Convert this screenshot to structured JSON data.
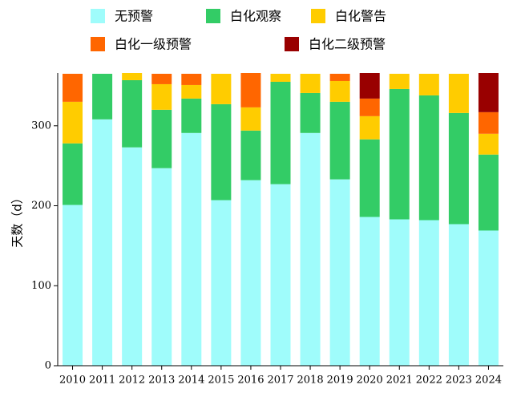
{
  "chart_data": {
    "type": "stacked_bar",
    "y_label": "天数（d）",
    "categories": [
      "2010",
      "2011",
      "2012",
      "2013",
      "2014",
      "2015",
      "2016",
      "2017",
      "2018",
      "2019",
      "2020",
      "2021",
      "2022",
      "2023",
      "2024"
    ],
    "series": [
      {
        "name": "无预警",
        "color": "#9ffcfb",
        "values": [
          201,
          308,
          273,
          247,
          291,
          207,
          232,
          227,
          291,
          233,
          186,
          183,
          182,
          177,
          169
        ]
      },
      {
        "name": "白化观察",
        "color": "#33cc66",
        "values": [
          77,
          57,
          84,
          73,
          43,
          120,
          62,
          128,
          50,
          97,
          97,
          163,
          156,
          139,
          95
        ]
      },
      {
        "name": "白化警告",
        "color": "#ffcc00",
        "values": [
          52,
          0,
          9,
          32,
          17,
          38,
          29,
          10,
          24,
          26,
          29,
          19,
          27,
          49,
          26
        ]
      },
      {
        "name": "白化一级预警",
        "color": "#ff6600",
        "values": [
          35,
          0,
          0,
          13,
          14,
          0,
          43,
          0,
          0,
          9,
          22,
          0,
          0,
          0,
          27
        ]
      },
      {
        "name": "白化二级预警",
        "color": "#990000",
        "values": [
          0,
          0,
          0,
          0,
          0,
          0,
          0,
          0,
          0,
          0,
          32,
          0,
          0,
          0,
          49
        ]
      }
    ],
    "ylim": [
      0,
      366
    ],
    "yticks": [
      0,
      100,
      200,
      300
    ]
  }
}
